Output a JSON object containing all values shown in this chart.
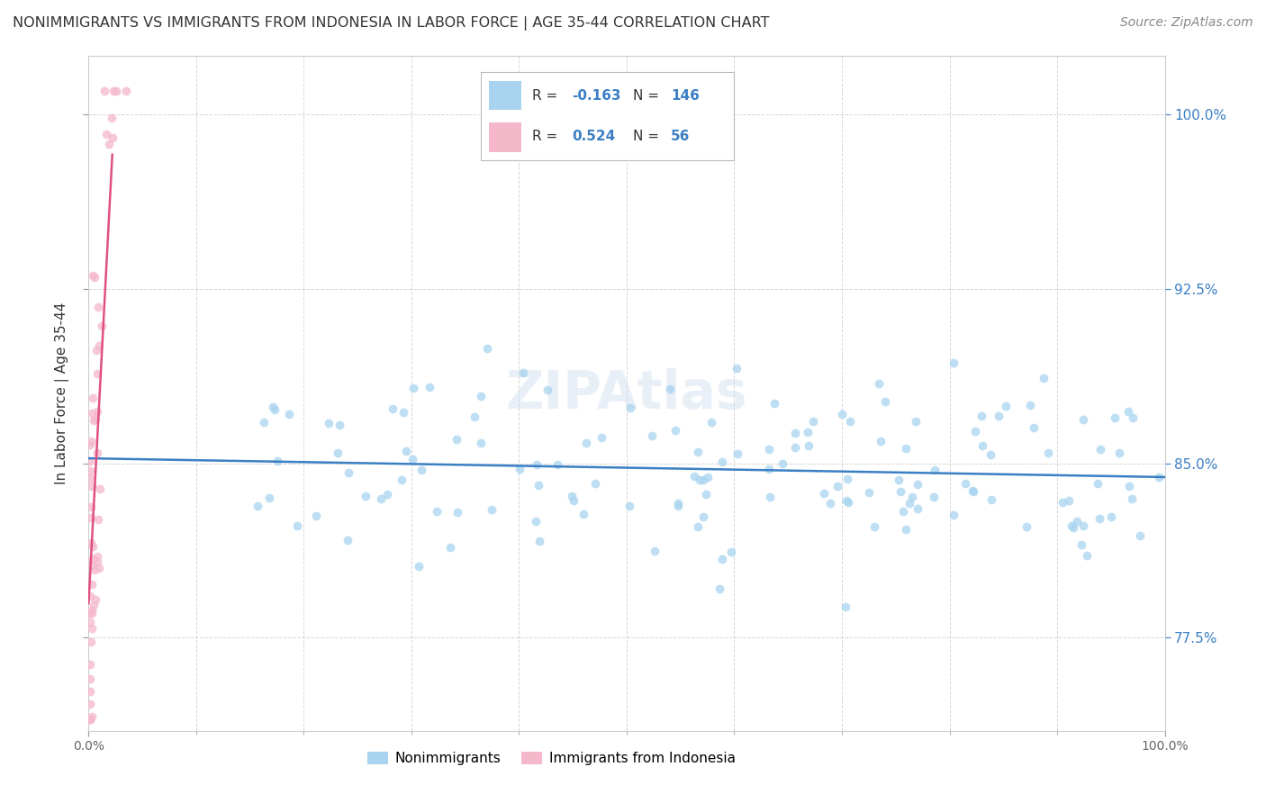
{
  "title": "NONIMMIGRANTS VS IMMIGRANTS FROM INDONESIA IN LABOR FORCE | AGE 35-44 CORRELATION CHART",
  "source": "Source: ZipAtlas.com",
  "ylabel": "In Labor Force | Age 35-44",
  "xlim": [
    0.0,
    1.0
  ],
  "ylim": [
    0.735,
    1.025
  ],
  "yticks": [
    0.775,
    0.85,
    0.925,
    1.0
  ],
  "ytick_labels": [
    "77.5%",
    "85.0%",
    "92.5%",
    "100.0%"
  ],
  "xtick_labels": [
    "0.0%",
    "100.0%"
  ],
  "xticks": [
    0.0,
    1.0
  ],
  "blue_color": "#A8D4F0",
  "pink_color": "#F5B8CB",
  "blue_line_color": "#3B7FC4",
  "pink_line_color": "#E05080",
  "R_blue": -0.163,
  "N_blue": 146,
  "R_pink": 0.524,
  "N_pink": 56,
  "legend_label_blue": "Nonimmigrants",
  "legend_label_pink": "Immigrants from Indonesia",
  "watermark": "ZIPAtlas",
  "title_fontsize": 11.5,
  "axis_label_fontsize": 11,
  "tick_fontsize": 10,
  "source_fontsize": 10,
  "dot_size": 50,
  "dot_alpha": 0.75,
  "line_width": 1.8,
  "blue_line_start_y": 0.862,
  "blue_line_end_y": 0.84,
  "pink_line_x0": 0.0,
  "pink_line_y0": 0.778,
  "pink_line_x1": 0.022,
  "pink_line_y1": 1.003
}
